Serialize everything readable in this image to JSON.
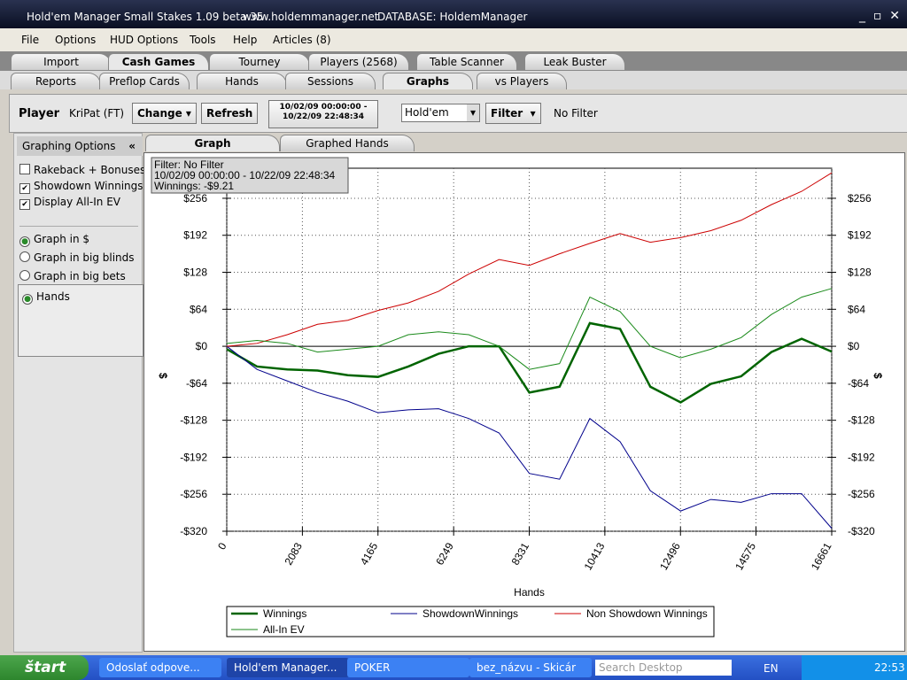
{
  "window": {
    "title": "Hold'em Manager Small Stakes 1.09 beta 35",
    "url": "www.holdemmanager.net",
    "database": "DATABASE: HoldemManager"
  },
  "menu": [
    "File",
    "Options",
    "HUD Options",
    "Tools",
    "Help",
    "Articles (8)"
  ],
  "tabs": {
    "items": [
      "Import",
      "Cash Games",
      "Tourney",
      "Players (2568)",
      "Table Scanner",
      "Leak Buster"
    ],
    "active": 1
  },
  "subtabs": {
    "items": [
      "Reports",
      "Preflop Cards",
      "Hands",
      "Sessions",
      "Graphs",
      "vs Players"
    ],
    "active": 4
  },
  "toolbar": {
    "player_label": "Player",
    "player": "KriPat (FT)",
    "change": "Change",
    "refresh": "Refresh",
    "date_from": "10/02/09 00:00:00 -",
    "date_to": "10/22/09 22:48:34",
    "game": "Hold'em",
    "filter": "Filter",
    "filter_status": "No Filter"
  },
  "options": {
    "title": "Graphing Options",
    "checkboxes": [
      {
        "label": "Rakeback + Bonuses",
        "checked": false
      },
      {
        "label": "Showdown Winnings",
        "checked": true
      },
      {
        "label": "Display All-In EV",
        "checked": true
      }
    ],
    "radios": [
      {
        "label": "Graph in $",
        "selected": true
      },
      {
        "label": "Graph in big blinds",
        "selected": false
      },
      {
        "label": "Graph in big bets",
        "selected": false
      }
    ],
    "x_axis": [
      {
        "label": "Hands",
        "selected": true
      }
    ]
  },
  "graph_tabs": {
    "items": [
      "Graph",
      "Graphed Hands"
    ],
    "active": 0
  },
  "chart_data": {
    "type": "line",
    "xlabel": "Hands",
    "ylabel": "$",
    "annotations": [
      "Filter: No Filter",
      "10/02/09 00:00:00 - 10/22/09 22:48:34",
      "Winnings: -$9.21"
    ],
    "x": [
      0,
      833,
      1666,
      2500,
      3333,
      4166,
      5000,
      5833,
      6666,
      7500,
      8333,
      9166,
      10000,
      10833,
      11666,
      12500,
      13333,
      14166,
      15000,
      15833,
      16661
    ],
    "xlim": [
      0,
      16661
    ],
    "xticks": [
      0,
      2083,
      4165,
      6249,
      8331,
      10413,
      12496,
      14575,
      16661
    ],
    "ylim": [
      -320,
      308
    ],
    "yticks": [
      {
        "value": -320,
        "label": "-$320"
      },
      {
        "value": -256,
        "label": "-$256"
      },
      {
        "value": -192,
        "label": "-$192"
      },
      {
        "value": -128,
        "label": "-$128"
      },
      {
        "value": -64,
        "label": "-$64"
      },
      {
        "value": 0,
        "label": "$0"
      },
      {
        "value": 64,
        "label": "$64"
      },
      {
        "value": 128,
        "label": "$128"
      },
      {
        "value": 192,
        "label": "$192"
      },
      {
        "value": 256,
        "label": "$256"
      }
    ],
    "grid": true,
    "series": [
      {
        "name": "Winnings",
        "color": "#006400",
        "width": 2.5,
        "values": [
          -5,
          -35,
          -40,
          -42,
          -50,
          -53,
          -35,
          -13,
          0,
          0,
          -80,
          -70,
          40,
          30,
          -70,
          -97,
          -65,
          -52,
          -10,
          13,
          -9.21
        ]
      },
      {
        "name": "ShowdownWinnings",
        "color": "#00008b",
        "width": 1,
        "values": [
          0,
          -40,
          -60,
          -80,
          -95,
          -115,
          -110,
          -108,
          -125,
          -150,
          -220,
          -230,
          -125,
          -165,
          -250,
          -285,
          -265,
          -270,
          -255,
          -255,
          -315
        ]
      },
      {
        "name": "Non Showdown Winnings",
        "color": "#cc0000",
        "width": 1,
        "values": [
          0,
          5,
          20,
          38,
          45,
          62,
          75,
          95,
          125,
          150,
          140,
          160,
          178,
          195,
          180,
          188,
          200,
          218,
          245,
          268,
          300
        ]
      },
      {
        "name": "All-In EV",
        "color": "#1a8a1a",
        "width": 1,
        "values": [
          5,
          10,
          5,
          -10,
          -5,
          0,
          20,
          25,
          20,
          0,
          -40,
          -30,
          85,
          60,
          0,
          -20,
          -5,
          15,
          55,
          85,
          100
        ]
      }
    ]
  },
  "taskbar": {
    "start": "štart",
    "items": [
      "Odoslať odpove...",
      "Hold'em Manager...",
      "POKER",
      "bez_názvu - Skicár"
    ],
    "active": 1,
    "search": "Search Desktop",
    "lang": "EN",
    "clock": "22:53"
  }
}
